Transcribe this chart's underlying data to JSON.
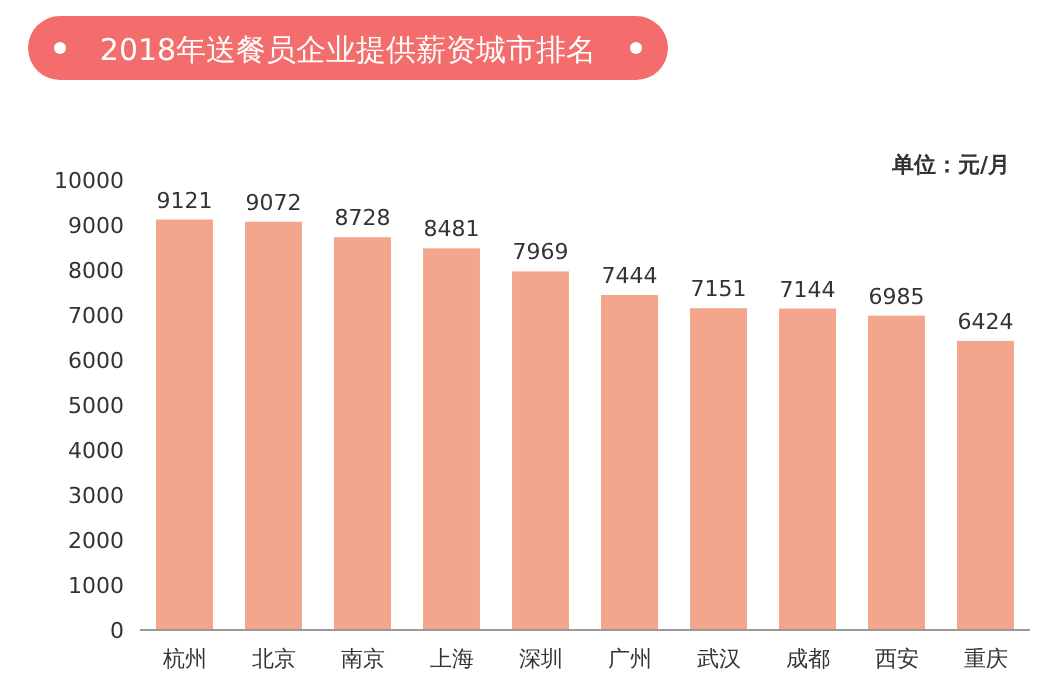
{
  "chart_data": {
    "type": "bar",
    "title": "2018年送餐员企业提供薪资城市排名",
    "annotations": [
      "单位：元/月"
    ],
    "categories": [
      "杭州",
      "北京",
      "南京",
      "上海",
      "深圳",
      "广州",
      "武汉",
      "成都",
      "西安",
      "重庆"
    ],
    "values": [
      9121,
      9072,
      8728,
      8481,
      7969,
      7444,
      7151,
      7144,
      6985,
      6424
    ],
    "color": "#f4a68c",
    "ylim": [
      0,
      10000
    ],
    "yticks": [
      0,
      1000,
      2000,
      3000,
      4000,
      5000,
      6000,
      7000,
      8000,
      9000,
      10000
    ],
    "data_labels": true
  }
}
